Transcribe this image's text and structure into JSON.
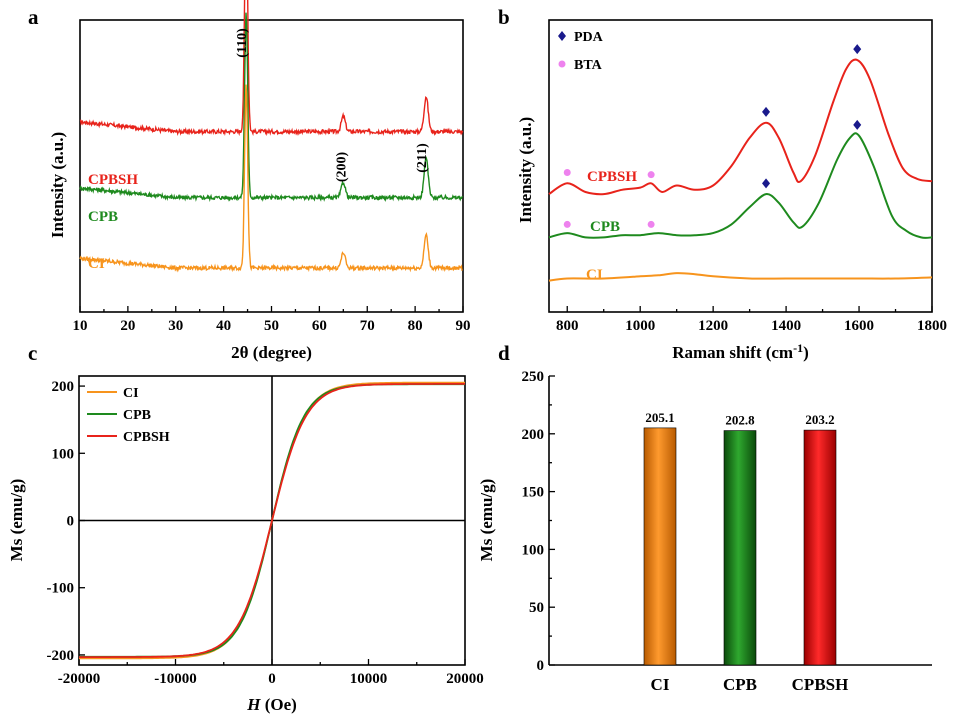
{
  "chart_data": [
    {
      "panel": "a",
      "type": "line",
      "xlabel": "2θ (degree)",
      "ylabel": "Intensity (a.u.)",
      "xlim": [
        10,
        90
      ],
      "xticks": [
        10,
        20,
        30,
        40,
        50,
        60,
        70,
        80,
        90
      ],
      "peak_labels": [
        {
          "x": 44.7,
          "label": "(110)"
        },
        {
          "x": 65.0,
          "label": "(200)"
        },
        {
          "x": 82.3,
          "label": "(211)"
        }
      ],
      "series": [
        {
          "name": "CPBSH",
          "color": "#e8231b",
          "baseline": 0.72,
          "peaks": [
            [
              44.7,
              1.0
            ],
            [
              65.0,
              0.07
            ],
            [
              82.3,
              0.16
            ]
          ]
        },
        {
          "name": "CPB",
          "color": "#1e8a1e",
          "baseline": 0.42,
          "peaks": [
            [
              44.7,
              0.84
            ],
            [
              65.0,
              0.07
            ],
            [
              82.3,
              0.18
            ]
          ]
        },
        {
          "name": "CI",
          "color": "#f7941d",
          "baseline": 0.1,
          "peaks": [
            [
              44.7,
              0.84
            ],
            [
              65.0,
              0.07
            ],
            [
              82.3,
              0.15
            ]
          ]
        }
      ]
    },
    {
      "panel": "b",
      "type": "line",
      "xlabel": "Raman shift (cm",
      "xlabel_sup": "-1",
      "xlabel_end": ")",
      "ylabel": "Intensity (a.u.)",
      "xlim": [
        750,
        1800
      ],
      "xticks": [
        800,
        1000,
        1200,
        1400,
        1600,
        1800
      ],
      "legend": [
        {
          "marker": "diamond",
          "label": "PDA",
          "color": "#1a1a8c"
        },
        {
          "marker": "circle",
          "label": "BTA",
          "color": "#ee82ee"
        }
      ],
      "series": [
        {
          "name": "CPBSH",
          "color": "#e8231b",
          "points": [
            [
              750,
              0.42
            ],
            [
              800,
              0.47
            ],
            [
              850,
              0.43
            ],
            [
              900,
              0.42
            ],
            [
              950,
              0.44
            ],
            [
              1000,
              0.45
            ],
            [
              1030,
              0.47
            ],
            [
              1060,
              0.43
            ],
            [
              1100,
              0.46
            ],
            [
              1150,
              0.44
            ],
            [
              1200,
              0.46
            ],
            [
              1250,
              0.55
            ],
            [
              1300,
              0.68
            ],
            [
              1345,
              0.75
            ],
            [
              1380,
              0.68
            ],
            [
              1420,
              0.52
            ],
            [
              1440,
              0.48
            ],
            [
              1480,
              0.6
            ],
            [
              1530,
              0.85
            ],
            [
              1565,
              1.0
            ],
            [
              1595,
              1.04
            ],
            [
              1630,
              0.95
            ],
            [
              1680,
              0.7
            ],
            [
              1720,
              0.54
            ],
            [
              1760,
              0.49
            ],
            [
              1800,
              0.48
            ]
          ]
        },
        {
          "name": "CPB",
          "color": "#1e8a1e",
          "points": [
            [
              750,
              0.22
            ],
            [
              800,
              0.24
            ],
            [
              850,
              0.22
            ],
            [
              900,
              0.22
            ],
            [
              950,
              0.23
            ],
            [
              1000,
              0.23
            ],
            [
              1050,
              0.24
            ],
            [
              1100,
              0.23
            ],
            [
              1150,
              0.23
            ],
            [
              1200,
              0.24
            ],
            [
              1250,
              0.28
            ],
            [
              1300,
              0.36
            ],
            [
              1345,
              0.42
            ],
            [
              1380,
              0.38
            ],
            [
              1420,
              0.29
            ],
            [
              1445,
              0.27
            ],
            [
              1490,
              0.38
            ],
            [
              1540,
              0.58
            ],
            [
              1575,
              0.68
            ],
            [
              1600,
              0.69
            ],
            [
              1640,
              0.55
            ],
            [
              1690,
              0.32
            ],
            [
              1730,
              0.25
            ],
            [
              1770,
              0.22
            ],
            [
              1800,
              0.22
            ]
          ]
        },
        {
          "name": "CI",
          "color": "#f7941d",
          "points": [
            [
              750,
              0.02
            ],
            [
              800,
              0.03
            ],
            [
              900,
              0.03
            ],
            [
              1000,
              0.04
            ],
            [
              1050,
              0.045
            ],
            [
              1100,
              0.055
            ],
            [
              1150,
              0.05
            ],
            [
              1200,
              0.04
            ],
            [
              1300,
              0.03
            ],
            [
              1400,
              0.03
            ],
            [
              1500,
              0.03
            ],
            [
              1600,
              0.03
            ],
            [
              1700,
              0.03
            ],
            [
              1800,
              0.035
            ]
          ]
        }
      ],
      "pda_markers": [
        [
          1345,
          0.8
        ],
        [
          1595,
          1.09
        ],
        [
          1345,
          0.47
        ],
        [
          1595,
          0.74
        ]
      ],
      "bta_markers": [
        [
          800,
          0.52
        ],
        [
          1030,
          0.51
        ],
        [
          800,
          0.28
        ],
        [
          1030,
          0.28
        ]
      ]
    },
    {
      "panel": "c",
      "type": "line",
      "xlabel_italic": "H",
      "xlabel_rest": " (Oe)",
      "ylabel": "Ms (emu/g)",
      "xlim": [
        -20000,
        20000
      ],
      "ylim": [
        -215,
        215
      ],
      "xticks": [
        -20000,
        -10000,
        0,
        10000,
        20000
      ],
      "yticks": [
        -200,
        -100,
        0,
        100,
        200
      ],
      "series": [
        {
          "name": "CI",
          "color": "#f7941d",
          "ms": 205.1,
          "scale": 3400
        },
        {
          "name": "CPB",
          "color": "#1e8a1e",
          "ms": 202.8,
          "scale": 3300
        },
        {
          "name": "CPBSH",
          "color": "#e8231b",
          "ms": 203.2,
          "scale": 3500
        }
      ]
    },
    {
      "panel": "d",
      "type": "bar",
      "ylabel": "Ms (emu/g)",
      "ylim": [
        0,
        250
      ],
      "yticks": [
        0,
        50,
        100,
        150,
        200,
        250
      ],
      "categories": [
        "CI",
        "CPB",
        "CPBSH"
      ],
      "values": [
        205.1,
        202.8,
        203.2
      ],
      "value_labels": [
        "205.1",
        "202.8",
        "203.2"
      ],
      "colors": [
        "#f7941d",
        "#1e8a1e",
        "#e8231b"
      ]
    }
  ]
}
